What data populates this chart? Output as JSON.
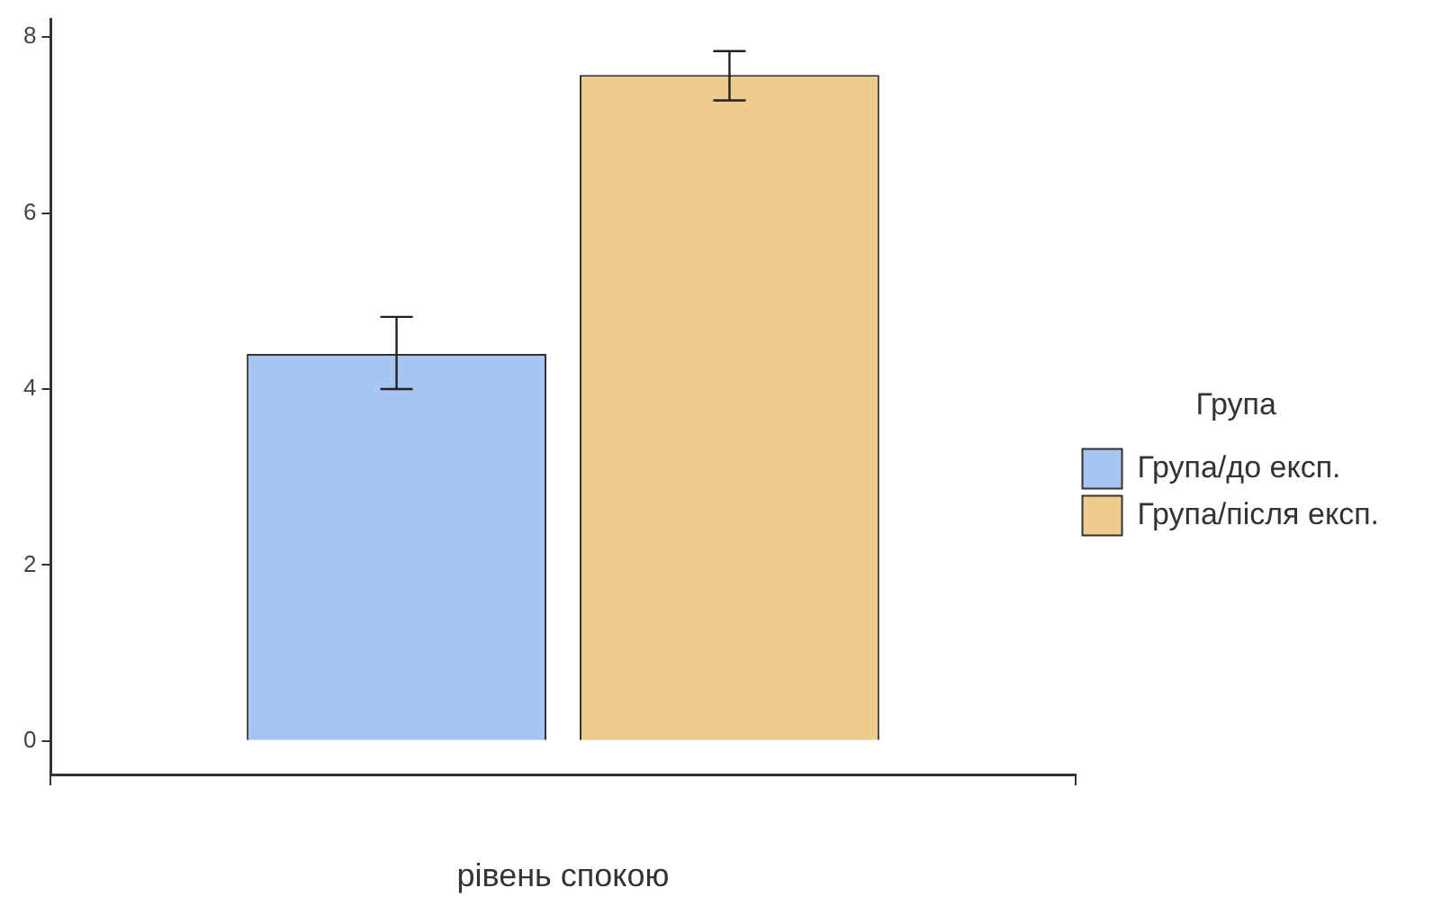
{
  "chart_data": {
    "type": "bar",
    "xlabel": "рівень спокою",
    "legend_title": "Група",
    "categories": [
      null
    ],
    "series": [
      {
        "name": "Група/до експ.",
        "color": "#a6c5f1",
        "values": [
          4.4
        ],
        "errors": [
          [
            4.0,
            4.82
          ]
        ]
      },
      {
        "name": "Група/після експ.",
        "color": "#efcb8d",
        "values": [
          7.57
        ],
        "errors": [
          [
            7.28,
            7.84
          ]
        ]
      }
    ],
    "ylim": [
      -0.38,
      8.2
    ],
    "yticks": [
      0,
      2,
      4,
      6,
      8
    ],
    "grid": false,
    "legend": "right"
  }
}
